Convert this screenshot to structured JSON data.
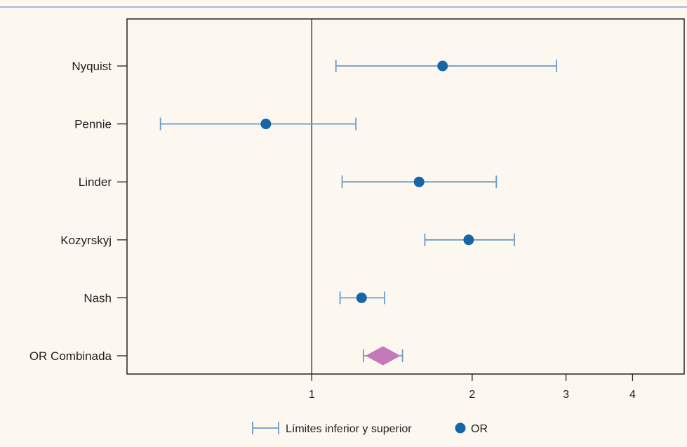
{
  "header": {
    "cutoff_text": ""
  },
  "chart_data": {
    "type": "forest",
    "x_scale": "log",
    "xlim": [
      0.45,
      5.0
    ],
    "x_ticks": [
      1,
      2,
      3,
      4
    ],
    "x_tick_labels": [
      "1",
      "2",
      "3",
      "4"
    ],
    "reference_line": 1,
    "grid": false,
    "legend_position": "bottom-center",
    "legend": {
      "ci_label": "Límites inferior y superior",
      "or_label": "OR"
    },
    "colors": {
      "ci": "#6a9cc9",
      "point": "#1565a8",
      "combined": "#c47ab8",
      "axis": "#222222"
    },
    "rows": [
      {
        "label": "Nyquist",
        "or": 1.76,
        "lower": 1.11,
        "upper": 2.88
      },
      {
        "label": "Pennie",
        "or": 0.82,
        "lower": 0.52,
        "upper": 1.21
      },
      {
        "label": "Linder",
        "or": 1.59,
        "lower": 1.14,
        "upper": 2.22
      },
      {
        "label": "Kozyrskyj",
        "or": 1.97,
        "lower": 1.63,
        "upper": 2.4
      },
      {
        "label": "Nash",
        "or": 1.24,
        "lower": 1.13,
        "upper": 1.37
      }
    ],
    "combined": {
      "label": "OR Combinada",
      "or": 1.36,
      "lower": 1.25,
      "upper": 1.48
    }
  }
}
